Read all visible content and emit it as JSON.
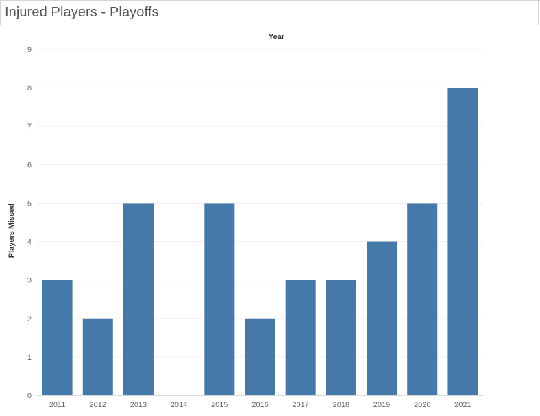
{
  "page": {
    "title": "Injured Players - Playoffs"
  },
  "chart_data": {
    "type": "bar",
    "title": "Injured Players - Playoffs",
    "xlabel": "Year",
    "ylabel": "Players Missed",
    "categories": [
      "2011",
      "2012",
      "2013",
      "2014",
      "2015",
      "2016",
      "2017",
      "2018",
      "2019",
      "2020",
      "2021"
    ],
    "values": [
      3,
      2,
      5,
      0,
      5,
      2,
      3,
      3,
      4,
      5,
      8
    ],
    "ylim": [
      0,
      9
    ],
    "yticks": [
      0,
      1,
      2,
      3,
      4,
      5,
      6,
      7,
      8,
      9
    ],
    "grid": true,
    "bar_color": "#4479aa"
  }
}
